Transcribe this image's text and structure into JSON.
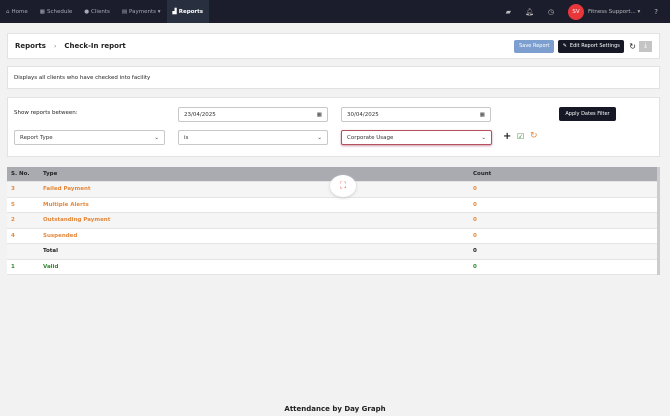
{
  "nav": {
    "items": [
      {
        "label": "Home",
        "icon": "home-icon"
      },
      {
        "label": "Schedule",
        "icon": "calendar-icon"
      },
      {
        "label": "Clients",
        "icon": "user-icon"
      },
      {
        "label": "Payments ▾",
        "icon": "payments-icon"
      },
      {
        "label": "Reports",
        "icon": "chart-icon",
        "active": true
      }
    ],
    "avatar": "SV",
    "user": "Fitness Support... ▾"
  },
  "header": {
    "crumb": "Reports",
    "title": "Check-In report",
    "save": "Save Report",
    "edit": "Edit Report Settings"
  },
  "description": "Displays all clients who have checked into facility",
  "filter": {
    "label": "Show reports between:",
    "from": "23/04/2025",
    "to": "30/04/2025",
    "apply": "Apply Dates Filter",
    "field": "Report Type",
    "op": "is",
    "value": "Corporate Usage"
  },
  "table": {
    "headers": [
      "S. No.",
      "Type",
      "Count"
    ],
    "rows": [
      {
        "sno": "3",
        "type": "Failed Payment",
        "count": "0",
        "tone": "or"
      },
      {
        "sno": "5",
        "type": "Multiple Alerts",
        "count": "0",
        "tone": "or"
      },
      {
        "sno": "2",
        "type": "Outstanding Payment",
        "count": "0",
        "tone": "or"
      },
      {
        "sno": "4",
        "type": "Suspended",
        "count": "0",
        "tone": "or"
      },
      {
        "sno": "",
        "type": "Total",
        "count": "0",
        "tone": ""
      },
      {
        "sno": "1",
        "type": "Valid",
        "count": "0",
        "tone": "gr"
      }
    ]
  },
  "graph_title": "Attendance by Day Graph"
}
